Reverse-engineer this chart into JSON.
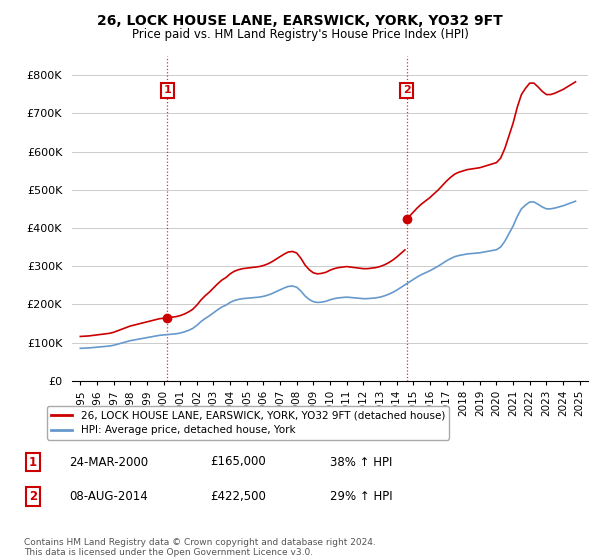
{
  "title": "26, LOCK HOUSE LANE, EARSWICK, YORK, YO32 9FT",
  "subtitle": "Price paid vs. HM Land Registry's House Price Index (HPI)",
  "legend_line1": "26, LOCK HOUSE LANE, EARSWICK, YORK, YO32 9FT (detached house)",
  "legend_line2": "HPI: Average price, detached house, York",
  "sale1_date": "24-MAR-2000",
  "sale1_price": "£165,000",
  "sale1_hpi": "38% ↑ HPI",
  "sale1_year": 2000.22,
  "sale1_value": 165000,
  "sale2_date": "08-AUG-2014",
  "sale2_price": "£422,500",
  "sale2_hpi": "29% ↑ HPI",
  "sale2_year": 2014.6,
  "sale2_value": 422500,
  "red_color": "#cc0000",
  "blue_color": "#6699cc",
  "background_color": "#ffffff",
  "grid_color": "#cccccc",
  "footer": "Contains HM Land Registry data © Crown copyright and database right 2024.\nThis data is licensed under the Open Government Licence v3.0.",
  "ylim": [
    0,
    850000
  ],
  "yticks": [
    0,
    100000,
    200000,
    300000,
    400000,
    500000,
    600000,
    700000,
    800000
  ],
  "ytick_labels": [
    "£0",
    "£100K",
    "£200K",
    "£300K",
    "£400K",
    "£500K",
    "£600K",
    "£700K",
    "£800K"
  ]
}
